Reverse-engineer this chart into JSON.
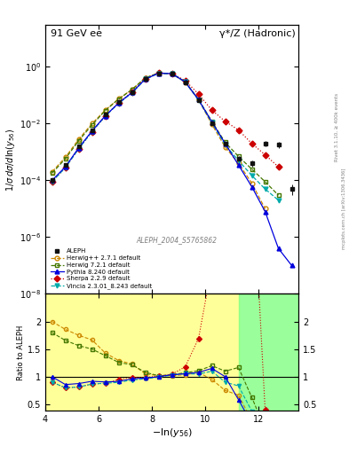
{
  "title_left": "91 GeV ee",
  "title_right": "γ*/Z (Hadronic)",
  "xlabel": "$-\\ln(y_{56})$",
  "ylabel_main": "$1/\\sigma\\, d\\sigma/d\\ln(y_{56})$",
  "ylabel_ratio": "Ratio to ALEPH",
  "ref_label": "ALEPH_2004_S5765862",
  "right_label": "mcplots.cern.ch [arXiv:1306.3436]",
  "rivet_label": "Rivet 3.1.10, ≥ 400k events",
  "xlim": [
    4,
    13.5
  ],
  "ylim_main": [
    1e-08,
    30
  ],
  "ylim_ratio": [
    0.38,
    2.5
  ],
  "aleph_x": [
    4.25,
    4.75,
    5.25,
    5.75,
    6.25,
    6.75,
    7.25,
    7.75,
    8.25,
    8.75,
    9.25,
    9.75,
    10.25,
    10.75,
    11.25,
    11.75,
    12.25,
    12.75,
    13.25
  ],
  "aleph_y": [
    0.0001,
    0.00035,
    0.0016,
    0.006,
    0.021,
    0.058,
    0.13,
    0.38,
    0.6,
    0.56,
    0.28,
    0.065,
    0.01,
    0.002,
    0.0006,
    0.0004,
    0.002,
    0.0018,
    5e-05
  ],
  "aleph_yerr": [
    2e-05,
    5e-05,
    0.0001,
    0.0003,
    0.0008,
    0.002,
    0.004,
    0.01,
    0.015,
    0.015,
    0.008,
    0.003,
    0.0006,
    0.0002,
    0.0001,
    0.0001,
    0.0004,
    0.0004,
    2e-05
  ],
  "herwigpp_x": [
    4.25,
    4.75,
    5.25,
    5.75,
    6.25,
    6.75,
    7.25,
    7.75,
    8.25,
    8.75,
    9.25,
    9.75,
    10.25,
    10.75,
    11.25,
    11.75,
    12.25
  ],
  "herwigpp_y": [
    0.0002,
    0.00065,
    0.0028,
    0.01,
    0.03,
    0.075,
    0.16,
    0.4,
    0.61,
    0.57,
    0.29,
    0.07,
    0.0095,
    0.0015,
    0.0004,
    8e-05,
    1e-05
  ],
  "herwig7_x": [
    4.25,
    4.75,
    5.25,
    5.75,
    6.25,
    6.75,
    7.25,
    7.75,
    8.25,
    8.75,
    9.25,
    9.75,
    10.25,
    10.75,
    11.25,
    11.75,
    12.25,
    12.75
  ],
  "herwig7_y": [
    0.00018,
    0.00058,
    0.0025,
    0.009,
    0.029,
    0.073,
    0.158,
    0.41,
    0.61,
    0.58,
    0.3,
    0.072,
    0.012,
    0.0022,
    0.0007,
    0.00025,
    9e-05,
    3e-05
  ],
  "pythia_x": [
    4.25,
    4.75,
    5.25,
    5.75,
    6.25,
    6.75,
    7.25,
    7.75,
    8.25,
    8.75,
    9.25,
    9.75,
    10.25,
    10.75,
    11.25,
    11.75,
    12.25,
    12.75,
    13.25
  ],
  "pythia_y": [
    0.0001,
    0.0003,
    0.0014,
    0.0055,
    0.019,
    0.053,
    0.125,
    0.37,
    0.6,
    0.58,
    0.295,
    0.07,
    0.0115,
    0.002,
    0.00035,
    6e-05,
    8e-06,
    4e-07,
    1e-07
  ],
  "sherpa_x": [
    4.25,
    4.75,
    5.25,
    5.75,
    6.25,
    6.75,
    7.25,
    7.75,
    8.25,
    8.75,
    9.25,
    9.75,
    10.25,
    10.75,
    11.25,
    11.75,
    12.25,
    12.75
  ],
  "sherpa_y": [
    9e-05,
    0.00028,
    0.0013,
    0.0052,
    0.0185,
    0.055,
    0.128,
    0.375,
    0.605,
    0.585,
    0.33,
    0.11,
    0.03,
    0.012,
    0.006,
    0.002,
    0.0008,
    0.0003
  ],
  "vincia_x": [
    4.25,
    4.75,
    5.25,
    5.75,
    6.25,
    6.75,
    7.25,
    7.75,
    8.25,
    8.75,
    9.25,
    9.75,
    10.25,
    10.75,
    11.25,
    11.75,
    12.25,
    12.75
  ],
  "vincia_y": [
    9e-05,
    0.00028,
    0.0013,
    0.0052,
    0.0185,
    0.052,
    0.122,
    0.365,
    0.595,
    0.575,
    0.295,
    0.068,
    0.011,
    0.0018,
    0.0005,
    0.00015,
    5e-05,
    2e-05
  ],
  "colors": {
    "aleph": "#111111",
    "herwigpp": "#cc8800",
    "herwig7": "#447700",
    "pythia": "#0000dd",
    "sherpa": "#cc0000",
    "vincia": "#00aaaa"
  },
  "band_yellow_xlim": [
    4.0,
    11.25
  ],
  "band_green_xlim": [
    11.25,
    13.5
  ],
  "band_ylim": [
    0.38,
    2.5
  ],
  "ratio_yticks": [
    0.5,
    1.0,
    1.5,
    2.0
  ],
  "ratio_yticklabels": [
    "0.5",
    "1",
    "1.5",
    "2"
  ]
}
